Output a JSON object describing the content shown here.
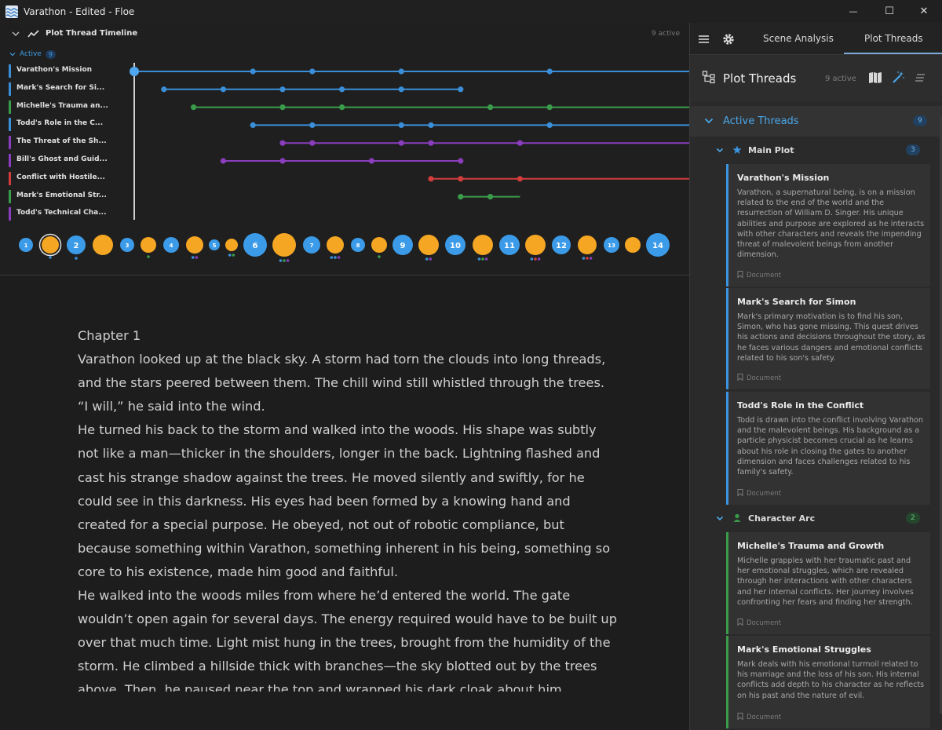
{
  "window": {
    "title": "Varathon - Edited - Floe",
    "minimize_glyph": "—",
    "maximize_glyph": "☐",
    "close_glyph": "✕"
  },
  "timeline": {
    "title": "Plot Thread Timeline",
    "active_count_text": "9 active",
    "active_label": "Active",
    "active_badge": "9",
    "threads": [
      {
        "name": "Varathon's Mission",
        "color": "#3b8fd9",
        "start": 0,
        "end": 14,
        "points": [
          0,
          4,
          6,
          9,
          14
        ]
      },
      {
        "name": "Mark's Search for Si...",
        "color": "#3b8fd9",
        "start": 1,
        "end": 11,
        "points": [
          1,
          3,
          5,
          7,
          9,
          11
        ]
      },
      {
        "name": "Michelle's Trauma an...",
        "color": "#3a9c4b",
        "start": 2,
        "end": 14,
        "points": [
          2,
          5,
          7,
          12,
          14
        ]
      },
      {
        "name": "Todd's Role in the C...",
        "color": "#3b8fd9",
        "start": 4,
        "end": 14,
        "points": [
          4,
          6,
          9,
          10,
          14
        ]
      },
      {
        "name": "The Threat of the Sh...",
        "color": "#8a3dbd",
        "start": 5,
        "end": 14,
        "points": [
          5,
          6,
          9,
          10,
          13
        ]
      },
      {
        "name": "Bill's Ghost and Guid...",
        "color": "#8a3dbd",
        "start": 3,
        "end": 11,
        "points": [
          3,
          5,
          8,
          11
        ]
      },
      {
        "name": "Conflict with Hostile...",
        "color": "#d23c3c",
        "start": 10,
        "end": 14,
        "points": [
          10,
          11,
          13
        ]
      },
      {
        "name": "Mark's Emotional Str...",
        "color": "#3a9c4b",
        "start": 11,
        "end": 13,
        "points": [
          11,
          12
        ]
      },
      {
        "name": "Todd's Technical Cha...",
        "color": "#8a3dbd",
        "start": null,
        "end": null,
        "points": []
      }
    ],
    "scenes": [
      {
        "label": "1",
        "kind": "chapter",
        "dots": []
      },
      {
        "label": "",
        "kind": "scene",
        "dots": [
          "#3b8fd9"
        ],
        "selected": true
      },
      {
        "label": "2",
        "kind": "chapter",
        "dots": [
          "#3b8fd9"
        ]
      },
      {
        "label": "",
        "kind": "scene",
        "dots": []
      },
      {
        "label": "3",
        "kind": "chapter",
        "dots": []
      },
      {
        "label": "",
        "kind": "scene",
        "dots": [
          "#3a9c4b"
        ]
      },
      {
        "label": "4",
        "kind": "chapter",
        "dots": []
      },
      {
        "label": "",
        "kind": "scene",
        "dots": [
          "#3b8fd9",
          "#8a3dbd"
        ]
      },
      {
        "label": "5",
        "kind": "chapter",
        "dots": []
      },
      {
        "label": "",
        "kind": "scene",
        "dots": [
          "#3b8fd9",
          "#3a9c4b"
        ]
      },
      {
        "label": "6",
        "kind": "chapter",
        "dots": []
      },
      {
        "label": "",
        "kind": "scene",
        "dots": [
          "#3b8fd9",
          "#3a9c4b",
          "#8a3dbd"
        ]
      },
      {
        "label": "7",
        "kind": "chapter",
        "dots": []
      },
      {
        "label": "",
        "kind": "scene",
        "dots": [
          "#3b8fd9",
          "#3b8fd9",
          "#8a3dbd"
        ]
      },
      {
        "label": "8",
        "kind": "chapter",
        "dots": []
      },
      {
        "label": "",
        "kind": "scene",
        "dots": [
          "#3a9c4b"
        ]
      },
      {
        "label": "9",
        "kind": "chapter",
        "dots": []
      },
      {
        "label": "",
        "kind": "scene",
        "dots": [
          "#3b8fd9",
          "#8a3dbd"
        ]
      },
      {
        "label": "10",
        "kind": "chapter",
        "dots": []
      },
      {
        "label": "",
        "kind": "scene",
        "dots": [
          "#3b8fd9",
          "#3a9c4b",
          "#8a3dbd"
        ]
      },
      {
        "label": "11",
        "kind": "chapter",
        "dots": []
      },
      {
        "label": "",
        "kind": "scene",
        "dots": [
          "#3b8fd9",
          "#d23c3c",
          "#8a3dbd"
        ]
      },
      {
        "label": "12",
        "kind": "chapter",
        "dots": []
      },
      {
        "label": "",
        "kind": "scene",
        "dots": [
          "#3b8fd9",
          "#d23c3c",
          "#8a3dbd"
        ]
      },
      {
        "label": "13",
        "kind": "chapter",
        "dots": []
      },
      {
        "label": "",
        "kind": "scene",
        "dots": []
      },
      {
        "label": "14",
        "kind": "chapter",
        "dots": []
      }
    ]
  },
  "editor": {
    "paragraphs": [
      "Chapter 1",
      "Varathon looked up at the black sky. A storm had torn the clouds into long threads, and the stars peered between them. The chill wind still whistled through the trees.",
      "“I will,” he said into the wind.",
      "He turned his back to the storm and walked into the woods. His shape was subtly not like a man—thicker in the shoulders, longer in the back. Lightning flashed and cast his strange shadow against the trees. He moved silently and swiftly, for he could see in this darkness. His eyes had been formed by a knowing hand and created for a special purpose. He obeyed, not out of robotic compliance, but because something within Varathon, something inherent in his being, something so core to his existence, made him good and faithful.",
      "He walked into the woods miles from where he’d entered the world. The gate wouldn’t open again for several days. The energy required would have to be built up over that much time. Light mist hung in the trees, brought from the humidity of the storm. He climbed a hillside thick with branches—the sky blotted out by the trees above. Then, he paused near the top and wrapped his dark cloak about him."
    ]
  },
  "panel": {
    "tabs": [
      {
        "label": "Scene Analysis",
        "active": false
      },
      {
        "label": "Plot Threads",
        "active": true
      }
    ],
    "title": "Plot Threads",
    "count_text": "9 active",
    "active_threads_label": "Active Threads",
    "active_threads_count": "9",
    "groups": [
      {
        "label": "Main Plot",
        "icon": "star-icon",
        "count": "3",
        "accent": "#3b94e0",
        "cards": [
          {
            "title": "Varathon's Mission",
            "desc": "Varathon, a supernatural being, is on a mission related to the end of the world and the resurrection of William D. Singer. His unique abilities and purpose are explored as he interacts with other characters and reveals the impending threat of malevolent beings from another dimension.",
            "source": "Document"
          },
          {
            "title": "Mark's Search for Simon",
            "desc": "Mark's primary motivation is to find his son, Simon, who has gone missing. This quest drives his actions and decisions throughout the story, as he faces various dangers and emotional conflicts related to his son's safety.",
            "source": "Document"
          },
          {
            "title": "Todd's Role in the Conflict",
            "desc": "Todd is drawn into the conflict involving Varathon and the malevolent beings. His background as a particle physicist becomes crucial as he learns about his role in closing the gates to another dimension and faces challenges related to his family's safety.",
            "source": "Document"
          }
        ]
      },
      {
        "label": "Character Arc",
        "icon": "person-icon",
        "count": "2",
        "accent": "#3a9c4b",
        "cards": [
          {
            "title": "Michelle's Trauma and Growth",
            "desc": "Michelle grapples with her traumatic past and her emotional struggles, which are revealed through her interactions with other characters and her internal conflicts. Her journey involves confronting her fears and finding her strength.",
            "source": "Document"
          },
          {
            "title": "Mark's Emotional Struggles",
            "desc": "Mark deals with his emotional turmoil related to his marriage and the loss of his son. His internal conflicts add depth to his character as he reflects on his past and the nature of evil.",
            "source": "Document"
          }
        ]
      }
    ]
  }
}
